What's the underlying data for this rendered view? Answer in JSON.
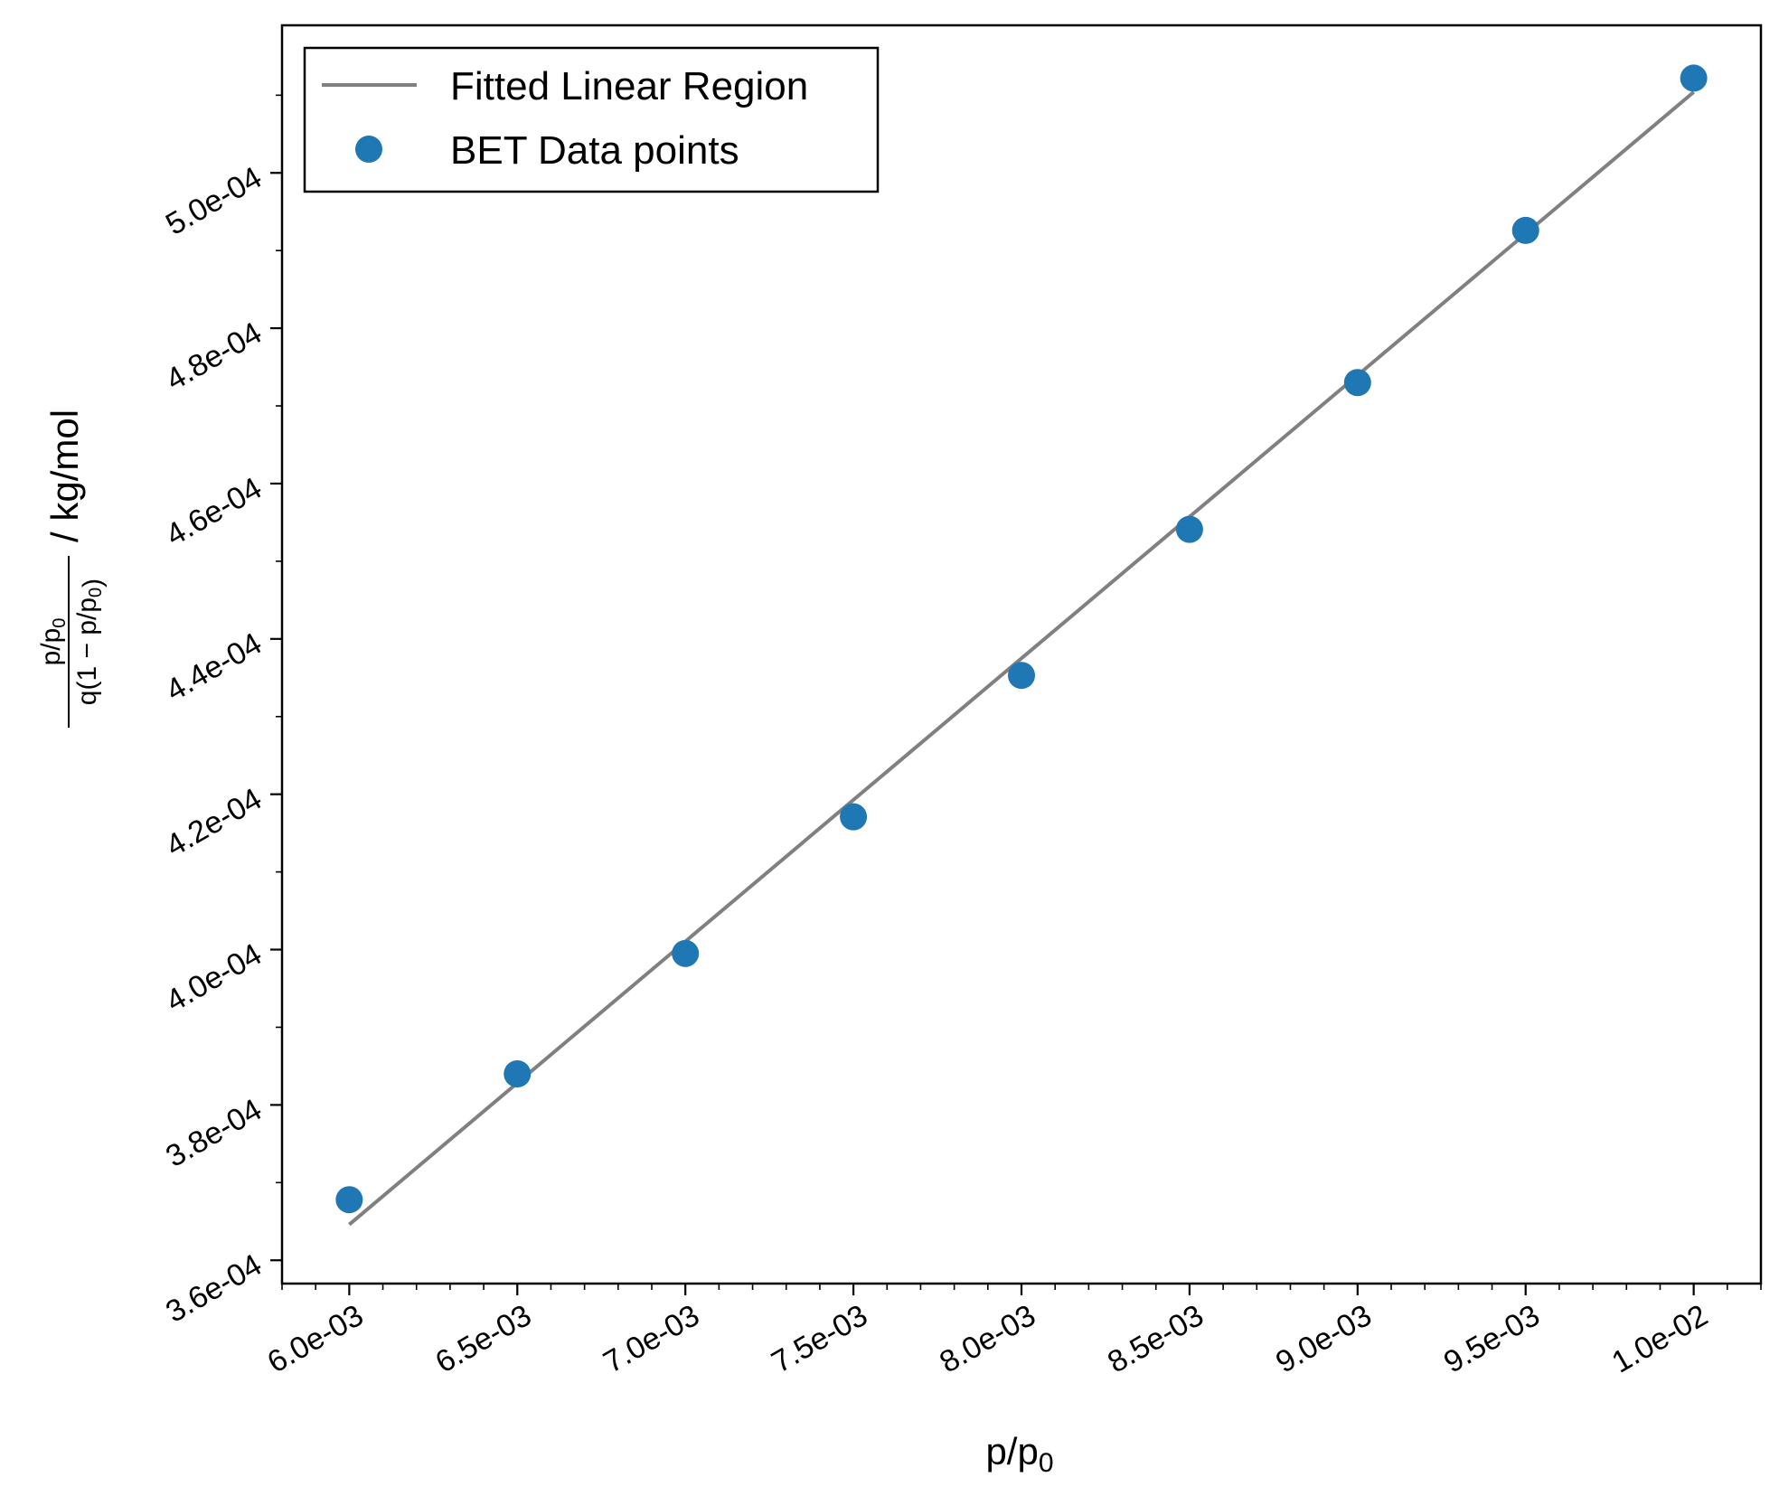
{
  "chart_data": {
    "type": "scatter",
    "title": "",
    "xlabel": "p/p0",
    "ylabel": {
      "numerator": "p/p0",
      "denominator": "q(1 − p/p0)",
      "unit": "/ kg/mol"
    },
    "xlim": [
      0.0058,
      0.0102
    ],
    "ylim": [
      0.000357,
      0.000519
    ],
    "x_ticks": [
      0.006,
      0.0065,
      0.007,
      0.0075,
      0.008,
      0.0085,
      0.009,
      0.0095,
      0.01
    ],
    "x_tick_labels": [
      "6.0e-03",
      "6.5e-03",
      "7.0e-03",
      "7.5e-03",
      "8.0e-03",
      "8.5e-03",
      "9.0e-03",
      "9.5e-03",
      "1.0e-02"
    ],
    "y_ticks": [
      0.00036,
      0.00038,
      0.0004,
      0.00042,
      0.00044,
      0.00046,
      0.00048,
      0.0005
    ],
    "y_tick_labels": [
      "3.6e-04",
      "3.8e-04",
      "4.0e-04",
      "4.2e-04",
      "4.4e-04",
      "4.6e-04",
      "4.8e-04",
      "5.0e-04"
    ],
    "x_minor_step": 0.0001,
    "y_minor_step": 1e-05,
    "grid": false,
    "legend_position": "top-left",
    "series": [
      {
        "name": "Fitted Linear Region",
        "kind": "line",
        "color": "#808080",
        "x": [
          0.006,
          0.01
        ],
        "y": [
          0.0003646,
          0.0005104
        ]
      },
      {
        "name": "BET Data points",
        "kind": "scatter",
        "color": "#1f77b4",
        "x": [
          0.006,
          0.0065,
          0.007,
          0.0075,
          0.008,
          0.0085,
          0.009,
          0.0095,
          0.01
        ],
        "y": [
          0.0003678,
          0.000384,
          0.0003995,
          0.0004171,
          0.0004353,
          0.0004541,
          0.000473,
          0.0004926,
          0.0005122
        ]
      }
    ]
  }
}
